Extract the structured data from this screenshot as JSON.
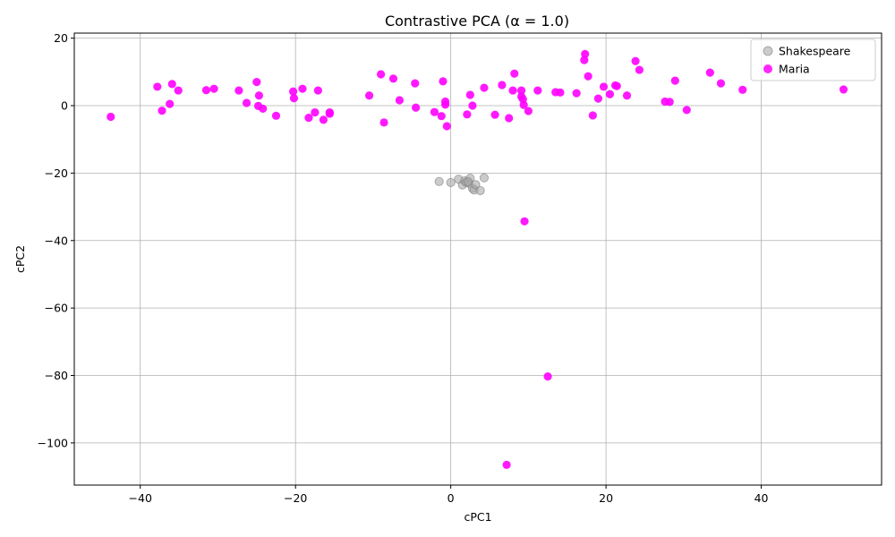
{
  "chart_data": {
    "type": "scatter",
    "title": "Contrastive PCA (α = 1.0)",
    "xlabel": "cPC1",
    "ylabel": "cPC2",
    "xlim": [
      -48.5,
      55.5
    ],
    "ylim": [
      -112.5,
      21.5
    ],
    "xticks": [
      -40,
      -20,
      0,
      20,
      40
    ],
    "yticks": [
      20,
      0,
      -20,
      -40,
      -60,
      -80,
      -100
    ],
    "grid": true,
    "legend_position": "upper-right",
    "series": [
      {
        "name": "Shakespeare",
        "color": "#a9a9a9",
        "points": [
          [
            -1.5,
            -22.5
          ],
          [
            0.0,
            -22.8
          ],
          [
            1.0,
            -21.8
          ],
          [
            1.5,
            -23.5
          ],
          [
            1.8,
            -22.3
          ],
          [
            2.0,
            -22.8
          ],
          [
            2.3,
            -23.0
          ],
          [
            2.5,
            -21.5
          ],
          [
            2.8,
            -24.5
          ],
          [
            3.0,
            -25.0
          ],
          [
            3.2,
            -23.4
          ],
          [
            3.8,
            -25.2
          ],
          [
            4.3,
            -21.4
          ],
          [
            2.2,
            -22.5
          ]
        ]
      },
      {
        "name": "Maria",
        "color": "#ff00ff",
        "points": [
          [
            -43.8,
            -3.3
          ],
          [
            -37.8,
            5.6
          ],
          [
            -37.2,
            -1.5
          ],
          [
            -36.2,
            0.5
          ],
          [
            -35.9,
            6.4
          ],
          [
            -35.1,
            4.5
          ],
          [
            -31.5,
            4.6
          ],
          [
            -30.5,
            5.0
          ],
          [
            -27.3,
            4.5
          ],
          [
            -26.3,
            0.8
          ],
          [
            -25.0,
            7.0
          ],
          [
            -24.7,
            3.0
          ],
          [
            -24.8,
            -0.1
          ],
          [
            -24.2,
            -0.9
          ],
          [
            -22.5,
            -3.0
          ],
          [
            -20.3,
            4.2
          ],
          [
            -20.2,
            2.2
          ],
          [
            -19.1,
            5.0
          ],
          [
            -18.3,
            -3.6
          ],
          [
            -17.5,
            -2.0
          ],
          [
            -17.1,
            4.5
          ],
          [
            -16.4,
            -4.2
          ],
          [
            -15.6,
            -2.4
          ],
          [
            -15.6,
            -2.0
          ],
          [
            -10.5,
            3.0
          ],
          [
            -9.0,
            9.3
          ],
          [
            -8.6,
            -5.0
          ],
          [
            -7.4,
            8.0
          ],
          [
            -6.6,
            1.6
          ],
          [
            -4.6,
            6.6
          ],
          [
            -4.5,
            -0.6
          ],
          [
            -2.1,
            -1.9
          ],
          [
            -1.2,
            -3.1
          ],
          [
            -1.0,
            7.2
          ],
          [
            -0.7,
            1.2
          ],
          [
            -0.7,
            0.3
          ],
          [
            -0.5,
            -6.1
          ],
          [
            2.1,
            -2.6
          ],
          [
            2.5,
            3.2
          ],
          [
            2.8,
            0.0
          ],
          [
            4.3,
            5.3
          ],
          [
            5.7,
            -2.7
          ],
          [
            6.6,
            6.1
          ],
          [
            7.5,
            -3.7
          ],
          [
            8.2,
            9.5
          ],
          [
            8.0,
            4.5
          ],
          [
            9.1,
            4.5
          ],
          [
            9.1,
            2.7
          ],
          [
            9.3,
            1.9
          ],
          [
            9.4,
            0.2
          ],
          [
            10.0,
            -1.6
          ],
          [
            11.2,
            4.5
          ],
          [
            13.5,
            4.0
          ],
          [
            14.1,
            3.9
          ],
          [
            16.2,
            3.7
          ],
          [
            17.3,
            15.3
          ],
          [
            17.2,
            13.5
          ],
          [
            17.7,
            8.7
          ],
          [
            18.3,
            -2.9
          ],
          [
            19.0,
            2.1
          ],
          [
            19.7,
            5.6
          ],
          [
            20.5,
            3.4
          ],
          [
            21.2,
            6.0
          ],
          [
            21.4,
            5.8
          ],
          [
            22.7,
            3.0
          ],
          [
            23.8,
            13.2
          ],
          [
            24.3,
            10.6
          ],
          [
            27.6,
            1.2
          ],
          [
            28.2,
            1.1
          ],
          [
            28.9,
            7.4
          ],
          [
            30.4,
            -1.3
          ],
          [
            33.4,
            9.8
          ],
          [
            34.8,
            6.6
          ],
          [
            37.6,
            4.7
          ],
          [
            50.6,
            4.8
          ],
          [
            9.5,
            -34.3
          ],
          [
            12.5,
            -80.3
          ],
          [
            7.2,
            -106.5
          ]
        ]
      }
    ]
  }
}
